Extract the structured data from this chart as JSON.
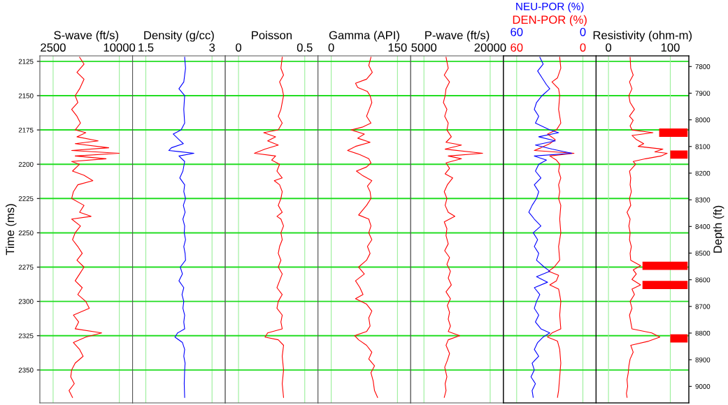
{
  "chart_data": [
    {
      "type": "line",
      "orientation": "horizontal",
      "xlabel": "S-wave (ft/s)",
      "ylabel": "Time (ms)",
      "xlim": [
        1000,
        11500
      ],
      "xticks": [
        2500,
        10000
      ],
      "ylim": [
        2374,
        2121
      ],
      "yticks": [
        2125,
        2150,
        2175,
        2200,
        2225,
        2250,
        2275,
        2300,
        2325,
        2350
      ],
      "grid": true,
      "series": [
        {
          "color": "#ff0000",
          "x": [
            2122,
            2127,
            2133,
            2138,
            2145,
            2150,
            2155,
            2160,
            2165,
            2170,
            2175,
            2177,
            2180,
            2183,
            2185,
            2188,
            2190,
            2192,
            2194,
            2196,
            2198,
            2200,
            2205,
            2208,
            2212,
            2215,
            2220,
            2225,
            2230,
            2235,
            2238,
            2240,
            2245,
            2250,
            2255,
            2260,
            2265,
            2270,
            2275,
            2280,
            2285,
            2290,
            2295,
            2300,
            2305,
            2310,
            2315,
            2320,
            2323,
            2326,
            2330,
            2335,
            2340,
            2345,
            2350,
            2355,
            2360,
            2365,
            2370
          ],
          "values": [
            5500,
            6000,
            5200,
            6000,
            5500,
            5000,
            5300,
            4600,
            5200,
            5600,
            5000,
            6200,
            5200,
            7600,
            5000,
            8800,
            4600,
            10000,
            5000,
            8500,
            4600,
            5500,
            4700,
            6000,
            7000,
            5300,
            4800,
            4600,
            6000,
            5500,
            6800,
            4600,
            5600,
            5000,
            4700,
            5300,
            5800,
            5200,
            6000,
            5500,
            5000,
            5800,
            5300,
            6200,
            6600,
            4800,
            5400,
            5000,
            8000,
            6200,
            4800,
            5500,
            5900,
            5000,
            4600,
            4500,
            4900,
            4300,
            4700
          ]
        }
      ]
    },
    {
      "type": "line",
      "orientation": "horizontal",
      "xlabel": "Density (g/cc)",
      "xlim": [
        1.2,
        3.3
      ],
      "xticks": [
        1.5,
        3
      ],
      "ylim": [
        2374,
        2121
      ],
      "yticks": [
        2125,
        2150,
        2175,
        2200,
        2225,
        2250,
        2275,
        2300,
        2325,
        2350
      ],
      "tick_labels": "x",
      "grid": true,
      "series": [
        {
          "color": "#0000ff",
          "x": [
            2122,
            2130,
            2140,
            2145,
            2150,
            2160,
            2170,
            2175,
            2178,
            2182,
            2185,
            2188,
            2190,
            2192,
            2194,
            2198,
            2205,
            2210,
            2215,
            2220,
            2225,
            2230,
            2235,
            2240,
            2245,
            2250,
            2255,
            2260,
            2265,
            2270,
            2275,
            2280,
            2285,
            2290,
            2295,
            2300,
            2305,
            2310,
            2315,
            2320,
            2323,
            2326,
            2330,
            2335,
            2340,
            2345,
            2350,
            2360,
            2370
          ],
          "values": [
            2.38,
            2.4,
            2.36,
            2.25,
            2.38,
            2.36,
            2.38,
            2.3,
            2.12,
            2.25,
            2.35,
            2.08,
            2.02,
            2.59,
            2.25,
            2.38,
            2.34,
            2.27,
            2.38,
            2.36,
            2.4,
            2.35,
            2.39,
            2.34,
            2.38,
            2.37,
            2.4,
            2.36,
            2.39,
            2.4,
            2.28,
            2.33,
            2.25,
            2.36,
            2.32,
            2.36,
            2.34,
            2.38,
            2.36,
            2.38,
            2.22,
            2.16,
            2.33,
            2.38,
            2.36,
            2.39,
            2.38,
            2.37,
            2.38
          ]
        }
      ]
    },
    {
      "type": "line",
      "orientation": "horizontal",
      "xlabel": "Poisson",
      "xlim": [
        -0.1,
        0.6
      ],
      "xticks": [
        0,
        0.5
      ],
      "ylim": [
        2374,
        2121
      ],
      "yticks": [
        2125,
        2150,
        2175,
        2200,
        2225,
        2250,
        2275,
        2300,
        2325,
        2350
      ],
      "tick_labels": "x",
      "grid": true,
      "series": [
        {
          "color": "#ff0000",
          "x": [
            2122,
            2130,
            2135,
            2140,
            2145,
            2150,
            2160,
            2165,
            2170,
            2175,
            2177,
            2180,
            2183,
            2186,
            2189,
            2192,
            2194,
            2197,
            2200,
            2205,
            2210,
            2212,
            2215,
            2220,
            2225,
            2230,
            2235,
            2238,
            2240,
            2245,
            2250,
            2255,
            2260,
            2265,
            2270,
            2275,
            2280,
            2285,
            2290,
            2295,
            2300,
            2305,
            2310,
            2315,
            2320,
            2323,
            2326,
            2328,
            2332,
            2340,
            2350,
            2360,
            2370
          ],
          "values": [
            0.33,
            0.32,
            0.34,
            0.31,
            0.33,
            0.34,
            0.32,
            0.3,
            0.33,
            0.3,
            0.19,
            0.28,
            0.22,
            0.3,
            0.2,
            0.12,
            0.28,
            0.25,
            0.31,
            0.29,
            0.33,
            0.27,
            0.31,
            0.33,
            0.32,
            0.3,
            0.33,
            0.29,
            0.32,
            0.34,
            0.32,
            0.33,
            0.31,
            0.3,
            0.32,
            0.3,
            0.33,
            0.31,
            0.29,
            0.33,
            0.3,
            0.29,
            0.33,
            0.32,
            0.33,
            0.22,
            0.2,
            0.3,
            0.34,
            0.33,
            0.34,
            0.33,
            0.34
          ]
        }
      ]
    },
    {
      "type": "line",
      "orientation": "horizontal",
      "xlabel": "Gamma (API)",
      "xlim": [
        -30,
        180
      ],
      "xticks": [
        0,
        150
      ],
      "ylim": [
        2374,
        2121
      ],
      "yticks": [
        2125,
        2150,
        2175,
        2200,
        2225,
        2250,
        2275,
        2300,
        2325,
        2350
      ],
      "tick_labels": "x",
      "grid": true,
      "series": [
        {
          "color": "#ff0000",
          "x": [
            2122,
            2128,
            2133,
            2138,
            2141,
            2144,
            2147,
            2150,
            2155,
            2160,
            2165,
            2170,
            2173,
            2175,
            2178,
            2181,
            2184,
            2187,
            2190,
            2193,
            2196,
            2199,
            2202,
            2205,
            2208,
            2212,
            2216,
            2220,
            2225,
            2230,
            2237,
            2240,
            2245,
            2250,
            2255,
            2260,
            2265,
            2270,
            2275,
            2280,
            2285,
            2290,
            2295,
            2298,
            2302,
            2307,
            2312,
            2318,
            2322,
            2325,
            2328,
            2332,
            2337,
            2342,
            2347,
            2352,
            2358,
            2365,
            2370
          ],
          "values": [
            90,
            85,
            93,
            80,
            55,
            60,
            82,
            88,
            92,
            86,
            80,
            90,
            70,
            45,
            75,
            60,
            88,
            55,
            37,
            65,
            85,
            90,
            80,
            57,
            70,
            92,
            82,
            88,
            90,
            80,
            62,
            85,
            90,
            85,
            92,
            82,
            88,
            80,
            62,
            75,
            55,
            65,
            72,
            55,
            80,
            92,
            85,
            88,
            80,
            53,
            62,
            80,
            92,
            85,
            98,
            90,
            95,
            98,
            105
          ]
        }
      ]
    },
    {
      "type": "line",
      "orientation": "horizontal",
      "xlabel": "P-wave (ft/s)",
      "xlim": [
        2000,
        23000
      ],
      "xticks": [
        5000,
        20000
      ],
      "ylim": [
        2374,
        2121
      ],
      "yticks": [
        2125,
        2150,
        2175,
        2200,
        2225,
        2250,
        2275,
        2300,
        2325,
        2350
      ],
      "tick_labels": "x",
      "grid": true,
      "series": [
        {
          "color": "#ff0000",
          "x": [
            2122,
            2130,
            2135,
            2140,
            2145,
            2150,
            2155,
            2160,
            2165,
            2170,
            2175,
            2180,
            2184,
            2186,
            2189,
            2192,
            2194,
            2196,
            2199,
            2203,
            2207,
            2210,
            2215,
            2220,
            2225,
            2230,
            2235,
            2238,
            2242,
            2247,
            2252,
            2258,
            2263,
            2268,
            2273,
            2278,
            2283,
            2288,
            2293,
            2298,
            2303,
            2308,
            2313,
            2318,
            2322,
            2325,
            2328,
            2332,
            2338,
            2343,
            2348,
            2355,
            2360,
            2365,
            2370
          ],
          "values": [
            10000,
            10500,
            9600,
            10800,
            10000,
            9800,
            9400,
            10200,
            9700,
            10500,
            10200,
            11200,
            10000,
            13500,
            9800,
            18300,
            10500,
            13500,
            10000,
            10800,
            9800,
            11500,
            10300,
            9600,
            10200,
            9800,
            10500,
            12000,
            9600,
            10200,
            10000,
            10500,
            9700,
            10800,
            10200,
            11000,
            10500,
            11200,
            10000,
            11000,
            10300,
            10800,
            10500,
            11000,
            10500,
            13100,
            10500,
            10000,
            10800,
            10300,
            9700,
            10200,
            9800,
            10000,
            9600
          ]
        }
      ]
    },
    {
      "type": "line",
      "orientation": "horizontal",
      "xlabel": "DEN-POR (%)",
      "x2label": "NEU-POR (%)",
      "xlim": [
        72,
        -12
      ],
      "xticks": [
        60,
        0
      ],
      "x2lim": [
        72,
        -12
      ],
      "x2ticks": [
        60,
        0
      ],
      "ylim": [
        2374,
        2121
      ],
      "yticks": [
        2125,
        2150,
        2175,
        2200,
        2225,
        2250,
        2275,
        2300,
        2325,
        2350
      ],
      "tick_labels": "x",
      "grid": true,
      "series": [
        {
          "color": "#0000ff",
          "axis": "x2",
          "x": [
            2122,
            2127,
            2132,
            2137,
            2142,
            2145,
            2150,
            2155,
            2160,
            2165,
            2170,
            2175,
            2177,
            2180,
            2183,
            2186,
            2189,
            2192,
            2194,
            2197,
            2200,
            2205,
            2210,
            2215,
            2220,
            2225,
            2230,
            2235,
            2240,
            2245,
            2250,
            2255,
            2260,
            2265,
            2270,
            2275,
            2278,
            2282,
            2286,
            2290,
            2295,
            2300,
            2305,
            2310,
            2315,
            2320,
            2323,
            2326,
            2330,
            2335,
            2340,
            2345,
            2350,
            2355,
            2360,
            2365,
            2370
          ],
          "values": [
            39,
            36,
            41,
            37,
            33,
            30,
            37,
            42,
            44,
            40,
            43,
            30,
            22,
            40,
            25,
            43,
            28,
            10,
            44,
            33,
            40,
            43,
            38,
            44,
            40,
            42,
            46,
            49,
            44,
            38,
            45,
            41,
            44,
            40,
            42,
            35,
            30,
            42,
            32,
            44,
            39,
            42,
            44,
            40,
            43,
            38,
            30,
            36,
            41,
            44,
            40,
            46,
            44,
            47,
            43,
            46,
            45
          ]
        },
        {
          "color": "#ff0000",
          "x": [
            2122,
            2130,
            2137,
            2140,
            2145,
            2150,
            2160,
            2170,
            2175,
            2178,
            2182,
            2185,
            2188,
            2190,
            2192,
            2194,
            2197,
            2200,
            2205,
            2210,
            2215,
            2220,
            2225,
            2230,
            2240,
            2250,
            2260,
            2270,
            2275,
            2278,
            2281,
            2285,
            2288,
            2291,
            2295,
            2300,
            2310,
            2320,
            2323,
            2326,
            2329,
            2335,
            2345,
            2355,
            2365,
            2370
          ],
          "values": [
            21,
            20,
            23,
            28,
            22,
            21,
            22,
            20,
            24,
            32,
            25,
            30,
            38,
            44,
            8,
            30,
            24,
            21,
            22,
            20,
            22,
            21,
            22,
            20,
            21,
            20,
            22,
            21,
            26,
            31,
            22,
            24,
            30,
            22,
            21,
            20,
            21,
            20,
            28,
            32,
            23,
            21,
            20,
            21,
            22,
            23
          ]
        }
      ]
    },
    {
      "type": "line",
      "orientation": "horizontal",
      "xlabel": "Resistivity (ohm-m)",
      "y2label": "Depth (ft)",
      "xlim": [
        -20,
        130
      ],
      "xticks": [
        0,
        100
      ],
      "ylim": [
        2374,
        2121
      ],
      "y2lim": [
        9062,
        7760
      ],
      "y2ticks": [
        7800,
        7900,
        8000,
        8100,
        8200,
        8300,
        8400,
        8500,
        8600,
        8700,
        8800,
        8900,
        9000
      ],
      "grid": true,
      "series": [
        {
          "color": "#ff0000",
          "x": [
            2122,
            2130,
            2135,
            2140,
            2145,
            2150,
            2155,
            2160,
            2165,
            2168,
            2172,
            2175,
            2177,
            2179,
            2182,
            2185,
            2187,
            2189,
            2191,
            2192,
            2194,
            2196,
            2198,
            2200,
            2205,
            2210,
            2215,
            2220,
            2225,
            2230,
            2235,
            2240,
            2245,
            2250,
            2255,
            2260,
            2265,
            2270,
            2274,
            2277,
            2280,
            2284,
            2288,
            2291,
            2295,
            2300,
            2305,
            2310,
            2315,
            2320,
            2323,
            2326,
            2329,
            2332,
            2337,
            2342,
            2347,
            2352,
            2357,
            2362,
            2367,
            2370
          ],
          "values": [
            35,
            36,
            40,
            34,
            38,
            33,
            35,
            42,
            34,
            40,
            35,
            38,
            72,
            38,
            45,
            57,
            48,
            88,
            75,
            95,
            85,
            60,
            40,
            44,
            34,
            36,
            35,
            37,
            34,
            36,
            30,
            35,
            33,
            35,
            34,
            37,
            35,
            36,
            52,
            40,
            45,
            38,
            52,
            38,
            42,
            35,
            38,
            34,
            36,
            38,
            70,
            83,
            65,
            36,
            40,
            35,
            33,
            32,
            30,
            31,
            29,
            30
          ]
        },
        {
          "type": "bar",
          "color": "#ff0000",
          "x": [
            2177,
            2193,
            2274,
            2288,
            2327
          ],
          "base": [
            82,
            100,
            55,
            55,
            100
          ],
          "values": [
            46,
            28,
            73,
            73,
            28
          ]
        }
      ]
    }
  ]
}
